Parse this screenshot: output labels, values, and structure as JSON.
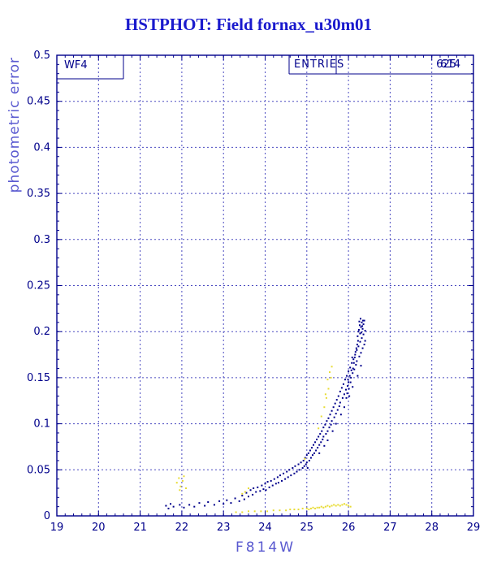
{
  "title": "HSTPHOT: Field fornax_u30m01",
  "panel_label": "WF4",
  "entries_box": {
    "label": "ENTRIES",
    "count_primary": "625",
    "count_secondary": "614"
  },
  "colors": {
    "title": "#1a1acd",
    "frame": "#00008b",
    "grid": "#4a4ac0",
    "axis_label": "#5a5ad0",
    "tick_label": "#00008b",
    "series_blue": "#00008b",
    "series_yellow": "#e8dc35"
  },
  "chart_data": {
    "type": "scatter",
    "title": "HSTPHOT: Field fornax_u30m01",
    "xlabel": "F814W",
    "ylabel": "photometric error",
    "xlim": [
      19,
      29
    ],
    "ylim": [
      0,
      0.5
    ],
    "grid": true,
    "x_ticks": [
      19,
      20,
      21,
      22,
      23,
      24,
      25,
      26,
      27,
      28,
      29
    ],
    "x_tick_labels": [
      "19",
      "20",
      "21",
      "22",
      "23",
      "24",
      "25",
      "26",
      "27",
      "28",
      "29"
    ],
    "y_ticks": [
      0,
      0.05,
      0.1,
      0.15,
      0.2,
      0.25,
      0.3,
      0.35,
      0.4,
      0.45,
      0.5
    ],
    "y_tick_labels": [
      "0",
      "0.05",
      "0.1",
      "0.15",
      "0.2",
      "0.25",
      "0.3",
      "0.35",
      "0.4",
      "0.45",
      "0.5"
    ],
    "series": [
      {
        "name": "stars-blue",
        "color": "#00008b",
        "points": [
          [
            21.62,
            0.011
          ],
          [
            21.68,
            0.008
          ],
          [
            21.73,
            0.013
          ],
          [
            21.8,
            0.01
          ],
          [
            21.95,
            0.012
          ],
          [
            22.05,
            0.009
          ],
          [
            22.18,
            0.012
          ],
          [
            22.3,
            0.01
          ],
          [
            22.42,
            0.014
          ],
          [
            22.55,
            0.011
          ],
          [
            22.63,
            0.015
          ],
          [
            22.78,
            0.012
          ],
          [
            22.9,
            0.016
          ],
          [
            23.0,
            0.013
          ],
          [
            23.08,
            0.017
          ],
          [
            23.18,
            0.014
          ],
          [
            23.28,
            0.019
          ],
          [
            23.38,
            0.016
          ],
          [
            23.45,
            0.022
          ],
          [
            23.5,
            0.018
          ],
          [
            23.55,
            0.025
          ],
          [
            23.6,
            0.021
          ],
          [
            23.65,
            0.028
          ],
          [
            23.7,
            0.023
          ],
          [
            23.72,
            0.03
          ],
          [
            23.78,
            0.026
          ],
          [
            23.82,
            0.031
          ],
          [
            23.88,
            0.027
          ],
          [
            23.92,
            0.033
          ],
          [
            23.96,
            0.029
          ],
          [
            24.0,
            0.035
          ],
          [
            24.02,
            0.028
          ],
          [
            24.06,
            0.037
          ],
          [
            24.1,
            0.031
          ],
          [
            24.14,
            0.038
          ],
          [
            24.18,
            0.033
          ],
          [
            24.22,
            0.04
          ],
          [
            24.26,
            0.035
          ],
          [
            24.3,
            0.042
          ],
          [
            24.32,
            0.036
          ],
          [
            24.36,
            0.044
          ],
          [
            24.4,
            0.038
          ],
          [
            24.44,
            0.046
          ],
          [
            24.48,
            0.04
          ],
          [
            24.52,
            0.048
          ],
          [
            24.55,
            0.042
          ],
          [
            24.58,
            0.05
          ],
          [
            24.62,
            0.044
          ],
          [
            24.66,
            0.052
          ],
          [
            24.7,
            0.046
          ],
          [
            24.72,
            0.054
          ],
          [
            24.76,
            0.048
          ],
          [
            24.8,
            0.056
          ],
          [
            24.82,
            0.05
          ],
          [
            24.86,
            0.058
          ],
          [
            24.9,
            0.052
          ],
          [
            24.92,
            0.06
          ],
          [
            24.94,
            0.054
          ],
          [
            24.96,
            0.063
          ],
          [
            24.98,
            0.056
          ],
          [
            25.0,
            0.066
          ],
          [
            25.0,
            0.058
          ],
          [
            25.02,
            0.052
          ],
          [
            25.04,
            0.068
          ],
          [
            25.06,
            0.06
          ],
          [
            25.08,
            0.071
          ],
          [
            25.1,
            0.063
          ],
          [
            25.12,
            0.074
          ],
          [
            25.14,
            0.066
          ],
          [
            25.16,
            0.077
          ],
          [
            25.18,
            0.068
          ],
          [
            25.2,
            0.08
          ],
          [
            25.22,
            0.071
          ],
          [
            25.24,
            0.083
          ],
          [
            25.26,
            0.074
          ],
          [
            25.28,
            0.086
          ],
          [
            25.3,
            0.077
          ],
          [
            25.3,
            0.068
          ],
          [
            25.32,
            0.089
          ],
          [
            25.34,
            0.08
          ],
          [
            25.36,
            0.092
          ],
          [
            25.38,
            0.083
          ],
          [
            25.4,
            0.096
          ],
          [
            25.4,
            0.086
          ],
          [
            25.42,
            0.076
          ],
          [
            25.44,
            0.099
          ],
          [
            25.46,
            0.089
          ],
          [
            25.48,
            0.103
          ],
          [
            25.5,
            0.092
          ],
          [
            25.5,
            0.082
          ],
          [
            25.52,
            0.106
          ],
          [
            25.54,
            0.096
          ],
          [
            25.56,
            0.11
          ],
          [
            25.58,
            0.099
          ],
          [
            25.6,
            0.114
          ],
          [
            25.6,
            0.103
          ],
          [
            25.62,
            0.092
          ],
          [
            25.64,
            0.118
          ],
          [
            25.66,
            0.107
          ],
          [
            25.68,
            0.122
          ],
          [
            25.7,
            0.111
          ],
          [
            25.7,
            0.1
          ],
          [
            25.72,
            0.126
          ],
          [
            25.74,
            0.115
          ],
          [
            25.76,
            0.13
          ],
          [
            25.78,
            0.119
          ],
          [
            25.8,
            0.135
          ],
          [
            25.8,
            0.123
          ],
          [
            25.82,
            0.11
          ],
          [
            25.84,
            0.139
          ],
          [
            25.86,
            0.128
          ],
          [
            25.88,
            0.143
          ],
          [
            25.9,
            0.132
          ],
          [
            25.9,
            0.118
          ],
          [
            25.92,
            0.148
          ],
          [
            25.94,
            0.137
          ],
          [
            25.96,
            0.152
          ],
          [
            25.98,
            0.141
          ],
          [
            26.0,
            0.157
          ],
          [
            26.0,
            0.145
          ],
          [
            26.02,
            0.13
          ],
          [
            26.04,
            0.161
          ],
          [
            26.06,
            0.15
          ],
          [
            26.08,
            0.166
          ],
          [
            26.1,
            0.155
          ],
          [
            26.1,
            0.14
          ],
          [
            26.12,
            0.17
          ],
          [
            26.14,
            0.159
          ],
          [
            26.16,
            0.175
          ],
          [
            26.18,
            0.164
          ],
          [
            26.2,
            0.18
          ],
          [
            26.2,
            0.168
          ],
          [
            26.22,
            0.152
          ],
          [
            26.24,
            0.184
          ],
          [
            26.26,
            0.173
          ],
          [
            26.28,
            0.189
          ],
          [
            26.3,
            0.177
          ],
          [
            26.3,
            0.163
          ],
          [
            26.32,
            0.193
          ],
          [
            26.34,
            0.182
          ],
          [
            26.36,
            0.197
          ],
          [
            26.38,
            0.186
          ],
          [
            26.4,
            0.201
          ],
          [
            26.4,
            0.19
          ],
          [
            26.28,
            0.198
          ],
          [
            26.3,
            0.205
          ],
          [
            26.32,
            0.21
          ],
          [
            26.34,
            0.203
          ],
          [
            26.36,
            0.208
          ],
          [
            26.38,
            0.212
          ],
          [
            26.25,
            0.202
          ],
          [
            26.27,
            0.207
          ],
          [
            26.22,
            0.195
          ],
          [
            26.24,
            0.2
          ],
          [
            26.26,
            0.211
          ],
          [
            26.29,
            0.214
          ],
          [
            26.33,
            0.206
          ],
          [
            26.35,
            0.212
          ],
          [
            26.31,
            0.199
          ],
          [
            26.23,
            0.19
          ],
          [
            26.21,
            0.186
          ],
          [
            26.19,
            0.182
          ],
          [
            26.17,
            0.178
          ],
          [
            26.15,
            0.172
          ],
          [
            26.13,
            0.166
          ],
          [
            26.11,
            0.16
          ],
          [
            26.09,
            0.172
          ],
          [
            26.07,
            0.158
          ],
          [
            26.05,
            0.145
          ],
          [
            26.03,
            0.152
          ],
          [
            26.01,
            0.138
          ],
          [
            25.99,
            0.148
          ],
          [
            25.97,
            0.133
          ],
          [
            25.95,
            0.128
          ]
        ]
      },
      {
        "name": "stars-yellow",
        "color": "#e8dc35",
        "points": [
          [
            21.88,
            0.036
          ],
          [
            21.93,
            0.041
          ],
          [
            21.97,
            0.032
          ],
          [
            22.02,
            0.038
          ],
          [
            22.05,
            0.043
          ],
          [
            22.1,
            0.03
          ],
          [
            21.95,
            0.028
          ],
          [
            23.45,
            0.024
          ],
          [
            23.52,
            0.026
          ],
          [
            23.6,
            0.03
          ],
          [
            23.3,
            0.004
          ],
          [
            23.45,
            0.004
          ],
          [
            23.6,
            0.005
          ],
          [
            23.75,
            0.005
          ],
          [
            23.9,
            0.005
          ],
          [
            24.05,
            0.005
          ],
          [
            24.2,
            0.006
          ],
          [
            24.35,
            0.006
          ],
          [
            24.5,
            0.006
          ],
          [
            24.6,
            0.007
          ],
          [
            24.7,
            0.007
          ],
          [
            24.8,
            0.007
          ],
          [
            24.9,
            0.008
          ],
          [
            25.0,
            0.008
          ],
          [
            25.05,
            0.007
          ],
          [
            25.1,
            0.008
          ],
          [
            25.15,
            0.009
          ],
          [
            25.2,
            0.008
          ],
          [
            25.25,
            0.009
          ],
          [
            25.3,
            0.009
          ],
          [
            25.35,
            0.01
          ],
          [
            25.4,
            0.009
          ],
          [
            25.45,
            0.01
          ],
          [
            25.5,
            0.011
          ],
          [
            25.55,
            0.01
          ],
          [
            25.6,
            0.011
          ],
          [
            25.65,
            0.012
          ],
          [
            25.7,
            0.011
          ],
          [
            25.75,
            0.012
          ],
          [
            25.8,
            0.011
          ],
          [
            25.85,
            0.012
          ],
          [
            25.9,
            0.013
          ],
          [
            25.95,
            0.012
          ],
          [
            26.0,
            0.011
          ],
          [
            26.05,
            0.01
          ],
          [
            25.42,
            0.118
          ],
          [
            25.47,
            0.128
          ],
          [
            25.52,
            0.138
          ],
          [
            25.5,
            0.148
          ],
          [
            25.55,
            0.156
          ],
          [
            25.58,
            0.15
          ],
          [
            25.45,
            0.132
          ],
          [
            25.6,
            0.162
          ],
          [
            25.35,
            0.108
          ],
          [
            24.95,
            0.062
          ],
          [
            25.28,
            0.095
          ]
        ]
      }
    ]
  }
}
